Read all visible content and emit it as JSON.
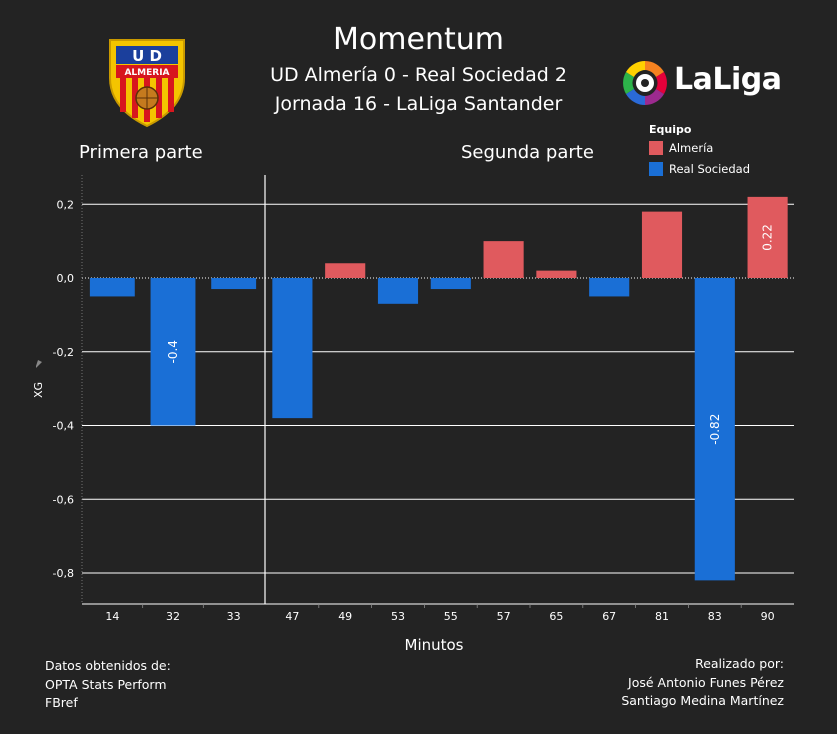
{
  "header": {
    "title": "Momentum",
    "subtitle_line1": "UD Almería 0 - Real Sociedad 2",
    "subtitle_line2": "Jornada 16 - LaLiga Santander"
  },
  "logos": {
    "left_crest_text_top": "U D",
    "left_crest_text": "ALMERIA",
    "right_logo_text": "LaLiga"
  },
  "half_titles": {
    "first": "Primera parte",
    "second": "Segunda parte"
  },
  "legend": {
    "title": "Equipo",
    "items": [
      {
        "label": "Almería",
        "color": "#e05a5e"
      },
      {
        "label": "Real Sociedad",
        "color": "#1a6fd6"
      }
    ]
  },
  "chart_data": {
    "type": "bar",
    "xlabel": "Minutos",
    "ylabel": "XG",
    "ylim": [
      -0.82,
      0.22
    ],
    "yticks": [
      "0,2",
      "0,0",
      "-0,2",
      "-0,4",
      "-0,6",
      "-0,8"
    ],
    "ytick_values": [
      0.2,
      0.0,
      -0.2,
      -0.4,
      -0.6,
      -0.8
    ],
    "categories": [
      "14",
      "32",
      "33",
      "47",
      "49",
      "53",
      "55",
      "57",
      "65",
      "67",
      "81",
      "83",
      "90"
    ],
    "values": [
      -0.05,
      -0.4,
      -0.03,
      -0.38,
      0.04,
      -0.07,
      -0.03,
      0.1,
      0.02,
      -0.05,
      0.18,
      -0.82,
      0.22
    ],
    "teams": [
      "Real Sociedad",
      "Real Sociedad",
      "Real Sociedad",
      "Real Sociedad",
      "Almería",
      "Real Sociedad",
      "Real Sociedad",
      "Almería",
      "Almería",
      "Real Sociedad",
      "Almería",
      "Real Sociedad",
      "Almería"
    ],
    "halves": [
      1,
      1,
      1,
      2,
      2,
      2,
      2,
      2,
      2,
      2,
      2,
      2,
      2
    ],
    "data_labels": [
      "",
      "-0.4",
      "",
      "",
      "",
      "",
      "",
      "",
      "",
      "",
      "",
      "-0.82",
      "0.22"
    ],
    "grid": true
  },
  "footer": {
    "left_lines": [
      "Datos obtenidos de:",
      "OPTA Stats Perform",
      "FBref"
    ],
    "right_lines": [
      "Realizado por:",
      "José Antonio Funes Pérez",
      "Santiago Medina Martínez"
    ]
  }
}
